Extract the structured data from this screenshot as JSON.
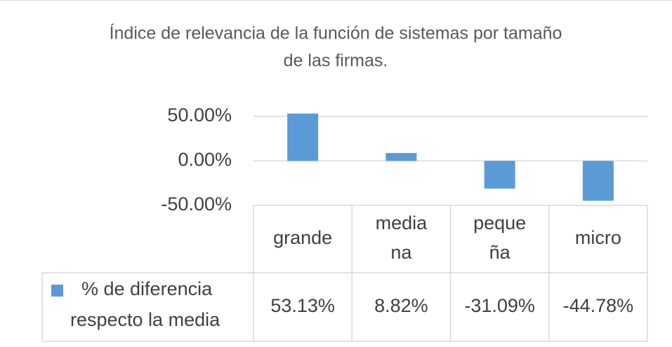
{
  "chart_data": {
    "type": "bar",
    "title": "Índice de relevancia de la función de sistemas por tamaño de las firmas.",
    "title_lines": [
      "Índice de relevancia de la función de sistemas por tamaño",
      "de las firmas."
    ],
    "categories": [
      "grande",
      "mediana",
      "pequeña",
      "micro"
    ],
    "category_lines": [
      [
        "grande"
      ],
      [
        "media",
        "na"
      ],
      [
        "peque",
        "ña"
      ],
      [
        "micro"
      ]
    ],
    "series": [
      {
        "name": "% de diferencia respecto la media",
        "name_lines": [
          "% de diferencia",
          "respecto la media"
        ],
        "values": [
          53.13,
          8.82,
          -31.09,
          -44.78
        ],
        "labels": [
          "53.13%",
          "8.82%",
          "-31.09%",
          "-44.78%"
        ],
        "color": "#5b9bd5"
      }
    ],
    "ylim": [
      -50,
      50
    ],
    "yticks": [
      50,
      0,
      -50
    ],
    "ytick_labels": [
      "50.00%",
      "0.00%",
      "-50.00%"
    ],
    "grid": true,
    "data_table": true,
    "legend_position": "in-data-table"
  }
}
